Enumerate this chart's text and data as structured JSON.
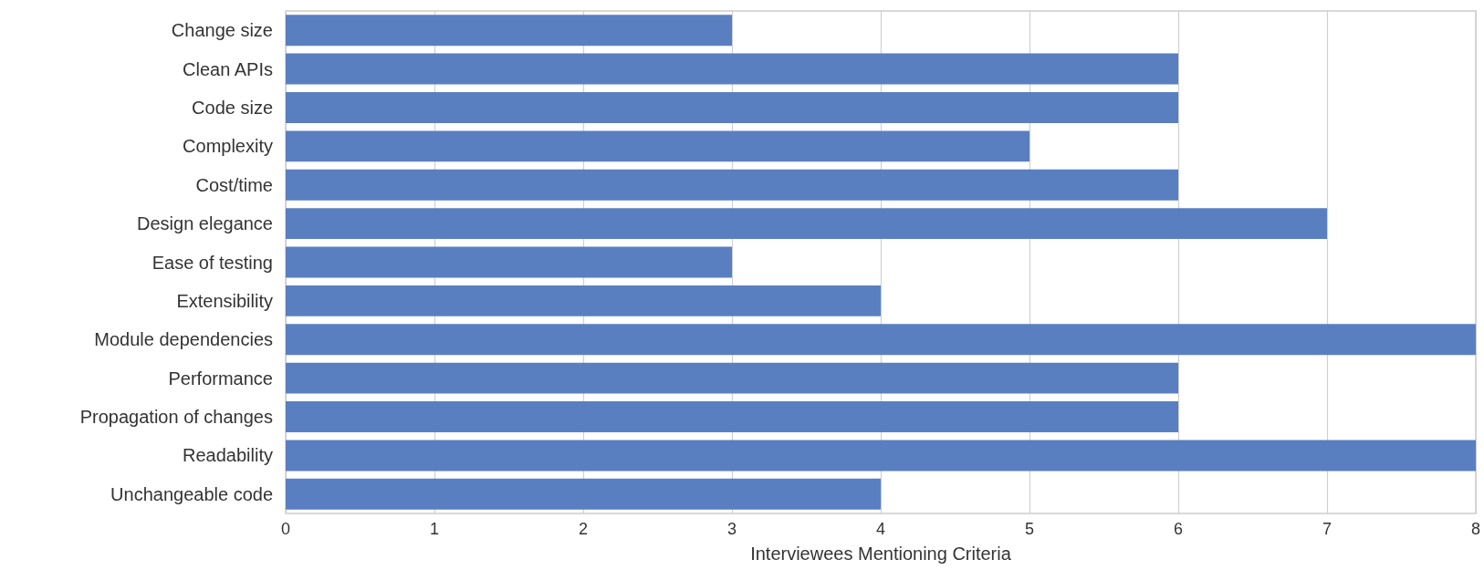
{
  "chart_data": {
    "type": "bar",
    "orientation": "horizontal",
    "xlabel": "Interviewees Mentioning Criteria",
    "categories": [
      "Change size",
      "Clean APIs",
      "Code size",
      "Complexity",
      "Cost/time",
      "Design elegance",
      "Ease of testing",
      "Extensibility",
      "Module dependencies",
      "Performance",
      "Propagation of changes",
      "Readability",
      "Unchangeable code"
    ],
    "values": [
      3,
      6,
      6,
      5,
      6,
      7,
      3,
      4,
      8,
      6,
      6,
      8,
      4
    ],
    "color": "#5a7fc1",
    "xlim": [
      0,
      8
    ],
    "xticks": [
      0,
      1,
      2,
      3,
      4,
      5,
      6,
      7,
      8
    ],
    "grid": "x"
  }
}
